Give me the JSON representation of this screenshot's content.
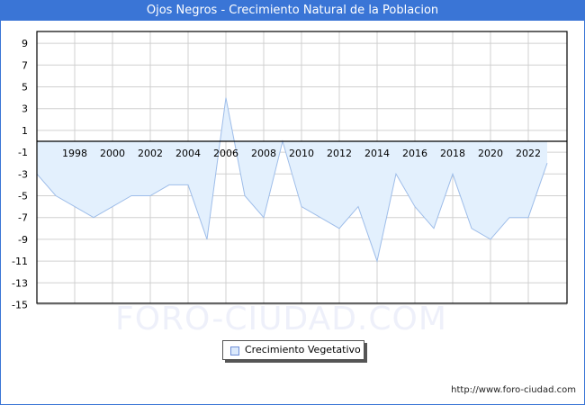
{
  "header": {
    "title": "Ojos Negros - Crecimiento Natural de la Poblacion"
  },
  "watermark": "FORO-CIUDAD.COM",
  "footer": {
    "url": "http://www.foro-ciudad.com"
  },
  "legend": {
    "label": "Crecimiento Vegetativo"
  },
  "colors": {
    "titlebar": "#3a75d6",
    "fill": "#e3f0fd",
    "line": "#9ebde9",
    "grid": "#d0d0d0"
  },
  "chart_data": {
    "type": "area",
    "title": "Ojos Negros - Crecimiento Natural de la Poblacion",
    "xlabel": "",
    "ylabel": "",
    "x": [
      1996,
      1997,
      1998,
      1999,
      2000,
      2001,
      2002,
      2003,
      2004,
      2005,
      2006,
      2007,
      2008,
      2009,
      2010,
      2011,
      2012,
      2013,
      2014,
      2015,
      2016,
      2017,
      2018,
      2019,
      2020,
      2021,
      2022,
      2023
    ],
    "series": [
      {
        "name": "Crecimiento Vegetativo",
        "values": [
          -3,
          -5,
          -6,
          -7,
          -6,
          -5,
          -5,
          -4,
          -4,
          -9,
          4,
          -5,
          -7,
          0,
          -6,
          -7,
          -8,
          -6,
          -11,
          -3,
          -6,
          -8,
          -3,
          -8,
          -9,
          -7,
          -7,
          -2
        ]
      }
    ],
    "x_tick_labels": [
      "1998",
      "2000",
      "2002",
      "2004",
      "2006",
      "2008",
      "2010",
      "2012",
      "2014",
      "2016",
      "2018",
      "2020",
      "2022"
    ],
    "y_tick_labels": [
      "9",
      "7",
      "5",
      "3",
      "1",
      "-1",
      "-3",
      "-5",
      "-7",
      "-9",
      "-11",
      "-13",
      "-15"
    ],
    "ylim": [
      -15,
      10
    ],
    "grid": true,
    "legend_position": "bottom-center"
  }
}
